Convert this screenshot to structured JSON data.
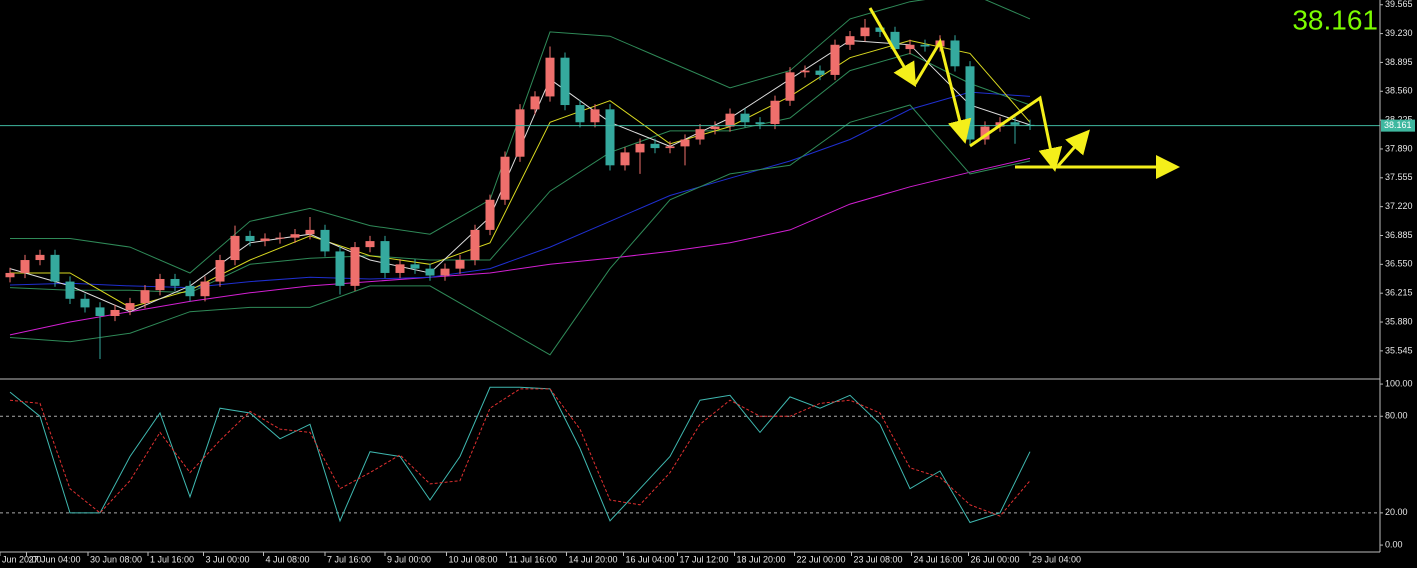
{
  "chart_data": [
    {
      "type": "candlestick",
      "up_color": "#ef6f6c",
      "down_color": "#35a99e",
      "ylim": [
        35.23,
        39.62
      ],
      "yticks": [
        39.565,
        {
          "value": 39.23,
          "label": "39.230"
        },
        38.895,
        {
          "value": 38.56,
          "label": "38.560"
        },
        38.225,
        {
          "value": 37.89,
          "label": "37.890"
        },
        37.555,
        {
          "value": 37.22,
          "label": "37.220"
        },
        36.885,
        {
          "value": 36.55,
          "label": "36.550"
        },
        36.215,
        {
          "value": 35.88,
          "label": "35.880"
        },
        35.545
      ],
      "xticks": [
        {
          "value": -0.67,
          "label": "Jun 20:00"
        },
        {
          "value": 1.1,
          "label": "27 Jun 04:00"
        },
        {
          "value": 5.2,
          "label": "30 Jun 08:00"
        },
        {
          "value": 9.2,
          "label": "1 Jul 16:00"
        },
        {
          "value": 12.9,
          "label": "3 Jul 00:00"
        },
        {
          "value": 16.9,
          "label": "4 Jul 08:00"
        },
        {
          "value": 21,
          "label": "7 Jul 16:00"
        },
        {
          "value": 25,
          "label": "9 Jul 00:00"
        },
        {
          "value": 29.1,
          "label": "10 Jul 08:00"
        },
        {
          "value": 33.1,
          "label": "11 Jul 16:00"
        },
        {
          "value": 37.1,
          "label": "14 Jul 20:00"
        },
        {
          "value": 40.9,
          "label": "16 Jul 04:00"
        },
        {
          "value": 44.5,
          "label": "17 Jul 12:00"
        },
        {
          "value": 48.3,
          "label": "18 Jul 20:00"
        },
        {
          "value": 52.3,
          "label": "22 Jul 00:00"
        },
        {
          "value": 56.1,
          "label": "23 Jul 08:00"
        },
        {
          "value": 60.1,
          "label": "24 Jul 16:00"
        },
        {
          "value": 63.9,
          "label": "26 Jul 00:00"
        },
        {
          "value": 68,
          "label": "29 Jul 04:00"
        }
      ],
      "current_price": 38.161,
      "open": [
        36.4,
        36.45,
        36.6,
        36.66,
        36.35,
        36.15,
        36.05,
        35.95,
        36.02,
        36.1,
        36.25,
        36.38,
        36.3,
        36.18,
        36.35,
        36.6,
        36.88,
        36.82,
        36.85,
        36.86,
        36.9,
        36.95,
        36.7,
        36.3,
        36.75,
        36.82,
        36.45,
        36.55,
        36.5,
        36.42,
        36.5,
        36.6,
        36.95,
        37.3,
        37.8,
        38.35,
        38.5,
        38.95,
        38.4,
        38.2,
        38.35,
        37.7,
        37.85,
        37.95,
        37.9,
        37.92,
        38.0,
        38.12,
        38.15,
        38.3,
        38.2,
        38.18,
        38.45,
        38.78,
        38.8,
        38.75,
        39.1,
        39.2,
        39.3,
        39.25,
        39.05,
        39.1,
        39.08,
        39.15,
        38.85,
        38.0,
        38.15,
        38.2,
        38.17
      ],
      "high": [
        36.51,
        36.66,
        36.72,
        36.72,
        36.41,
        36.21,
        36.11,
        36.08,
        36.16,
        36.31,
        36.44,
        36.44,
        36.36,
        36.41,
        36.66,
        37.0,
        36.94,
        36.91,
        36.92,
        36.96,
        37.1,
        37.01,
        36.76,
        36.81,
        36.88,
        36.88,
        36.61,
        36.61,
        36.56,
        36.56,
        36.66,
        37.01,
        37.36,
        37.86,
        38.41,
        38.56,
        39.08,
        39.01,
        38.46,
        38.41,
        38.41,
        37.91,
        38.01,
        38.01,
        37.98,
        38.06,
        38.18,
        38.21,
        38.36,
        38.36,
        38.26,
        38.51,
        38.84,
        38.86,
        38.86,
        39.16,
        39.26,
        39.4,
        39.36,
        39.31,
        39.16,
        39.16,
        39.21,
        39.21,
        38.91,
        38.21,
        38.26,
        38.26,
        38.23
      ],
      "low": [
        36.34,
        36.39,
        36.54,
        36.29,
        36.09,
        35.99,
        35.45,
        35.89,
        35.96,
        36.04,
        36.19,
        36.24,
        36.12,
        36.12,
        36.29,
        36.54,
        36.76,
        36.76,
        36.79,
        36.8,
        36.84,
        36.64,
        36.2,
        36.24,
        36.69,
        36.39,
        36.39,
        36.44,
        36.36,
        36.36,
        36.44,
        36.54,
        36.89,
        37.24,
        37.74,
        38.29,
        38.44,
        38.34,
        38.14,
        38.14,
        37.64,
        37.64,
        37.6,
        37.84,
        37.84,
        37.7,
        37.94,
        38.06,
        38.09,
        38.14,
        38.12,
        38.12,
        38.39,
        38.72,
        38.69,
        38.69,
        39.04,
        39.14,
        39.19,
        38.99,
        38.99,
        39.02,
        39.02,
        38.79,
        37.94,
        37.94,
        38.09,
        37.95,
        38.11
      ],
      "close": [
        36.45,
        36.6,
        36.66,
        36.35,
        36.15,
        36.05,
        35.95,
        36.02,
        36.1,
        36.25,
        36.38,
        36.3,
        36.18,
        36.35,
        36.6,
        36.88,
        36.82,
        36.85,
        36.86,
        36.9,
        36.95,
        36.7,
        36.3,
        36.75,
        36.82,
        36.45,
        36.55,
        36.5,
        36.42,
        36.5,
        36.6,
        36.95,
        37.3,
        37.8,
        38.35,
        38.5,
        38.95,
        38.4,
        38.2,
        38.35,
        37.7,
        37.85,
        37.95,
        37.9,
        37.92,
        38.0,
        38.12,
        38.15,
        38.3,
        38.2,
        38.18,
        38.45,
        38.78,
        38.8,
        38.75,
        39.1,
        39.2,
        39.3,
        39.25,
        39.05,
        39.1,
        39.08,
        39.15,
        38.85,
        38.0,
        38.15,
        38.2,
        38.17,
        38.161
      ],
      "series": [
        {
          "color": "#d21fd2",
          "x": [
            0,
            4,
            8,
            12,
            16,
            20,
            24,
            28,
            32,
            36,
            40,
            44,
            48,
            52,
            56,
            60,
            64,
            68
          ],
          "values": [
            35.73,
            35.88,
            36.0,
            36.12,
            36.22,
            36.3,
            36.35,
            36.4,
            36.45,
            36.55,
            36.62,
            36.7,
            36.8,
            36.95,
            37.25,
            37.45,
            37.62,
            37.78
          ]
        },
        {
          "color": "#1f2fd0",
          "x": [
            0,
            4,
            8,
            12,
            16,
            20,
            24,
            28,
            32,
            36,
            40,
            44,
            48,
            52,
            56,
            60,
            64,
            68
          ],
          "values": [
            36.31,
            36.33,
            36.3,
            36.28,
            36.35,
            36.4,
            36.38,
            36.4,
            36.5,
            36.75,
            37.05,
            37.35,
            37.55,
            37.75,
            38.0,
            38.35,
            38.55,
            38.5
          ]
        },
        {
          "color": "#2f8a58",
          "x": [
            0,
            4,
            8,
            12,
            16,
            20,
            24,
            28,
            32,
            36,
            40,
            44,
            48,
            52,
            56,
            60,
            64,
            68
          ],
          "values": [
            36.85,
            36.85,
            36.75,
            36.45,
            37.05,
            37.2,
            37.0,
            36.9,
            37.3,
            39.25,
            39.2,
            38.9,
            38.6,
            38.8,
            39.4,
            39.6,
            39.7,
            39.4
          ]
        },
        {
          "color": "#2f8a58",
          "x": [
            0,
            4,
            8,
            12,
            16,
            20,
            24,
            28,
            32,
            36,
            40,
            44,
            48,
            52,
            56,
            60,
            64,
            68
          ],
          "values": [
            36.28,
            36.25,
            36.25,
            36.22,
            36.55,
            36.62,
            36.65,
            36.6,
            36.6,
            37.4,
            37.85,
            38.1,
            38.1,
            38.25,
            38.8,
            39.0,
            38.65,
            38.4
          ]
        },
        {
          "color": "#2f8a58",
          "x": [
            0,
            4,
            8,
            12,
            16,
            20,
            24,
            28,
            32,
            36,
            40,
            44,
            48,
            52,
            56,
            60,
            64,
            68
          ],
          "values": [
            35.7,
            35.65,
            35.75,
            36.0,
            36.05,
            36.05,
            36.3,
            36.3,
            35.9,
            35.5,
            36.5,
            37.3,
            37.6,
            37.7,
            38.2,
            38.4,
            37.6,
            37.75
          ]
        },
        {
          "color": "#d8d820",
          "x": [
            0,
            4,
            8,
            12,
            16,
            20,
            24,
            28,
            32,
            36,
            40,
            44,
            48,
            52,
            56,
            60,
            64,
            68
          ],
          "values": [
            36.45,
            36.45,
            36.05,
            36.25,
            36.6,
            36.88,
            36.65,
            36.55,
            36.8,
            38.2,
            38.45,
            37.95,
            38.15,
            38.5,
            38.95,
            39.15,
            39.0,
            38.2
          ]
        },
        {
          "color": "#dddddd",
          "x": [
            0,
            4,
            8,
            12,
            16,
            20,
            24,
            28,
            32,
            36,
            40,
            44,
            48,
            52,
            56,
            60,
            64,
            68
          ],
          "values": [
            36.5,
            36.3,
            36.0,
            36.3,
            36.8,
            36.9,
            36.6,
            36.45,
            37.1,
            38.7,
            38.2,
            37.92,
            38.25,
            38.7,
            39.15,
            39.1,
            38.4,
            38.17
          ]
        }
      ]
    },
    {
      "type": "line",
      "ylim": [
        -4.3,
        101.9
      ],
      "yticks": [
        {
          "value": 100,
          "label": "100.00"
        },
        {
          "value": 80,
          "label": "80.00"
        },
        {
          "value": 20,
          "label": "20.00"
        },
        {
          "value": 0,
          "label": "0.00"
        }
      ],
      "levels": [
        80,
        20
      ],
      "series": [
        {
          "color": "#3fb8b0",
          "dashed": false,
          "x": [
            0,
            2,
            4,
            6,
            8,
            10,
            12,
            14,
            16,
            18,
            20,
            22,
            24,
            26,
            28,
            30,
            32,
            34,
            36,
            38,
            40,
            42,
            44,
            46,
            48,
            50,
            52,
            54,
            56,
            58,
            60,
            62,
            64,
            66,
            68
          ],
          "values": [
            95,
            80,
            20,
            20,
            55,
            82,
            30,
            85,
            82,
            66,
            75,
            15,
            58,
            55,
            28,
            55,
            98,
            98,
            97,
            60,
            15,
            35,
            55,
            90,
            93,
            70,
            92,
            85,
            93,
            75,
            35,
            46,
            14,
            20,
            58
          ]
        },
        {
          "color": "#e03030",
          "dashed": true,
          "x": [
            0,
            2,
            4,
            6,
            8,
            10,
            12,
            14,
            16,
            18,
            20,
            22,
            24,
            26,
            28,
            30,
            32,
            34,
            36,
            38,
            40,
            42,
            44,
            46,
            48,
            50,
            52,
            54,
            56,
            58,
            60,
            62,
            64,
            66,
            68
          ],
          "values": [
            90,
            88,
            35,
            20,
            40,
            70,
            45,
            65,
            83,
            72,
            70,
            35,
            45,
            56,
            38,
            40,
            85,
            97,
            97,
            72,
            28,
            25,
            45,
            75,
            90,
            80,
            80,
            88,
            90,
            82,
            48,
            42,
            25,
            18,
            40
          ]
        }
      ]
    }
  ]
}
